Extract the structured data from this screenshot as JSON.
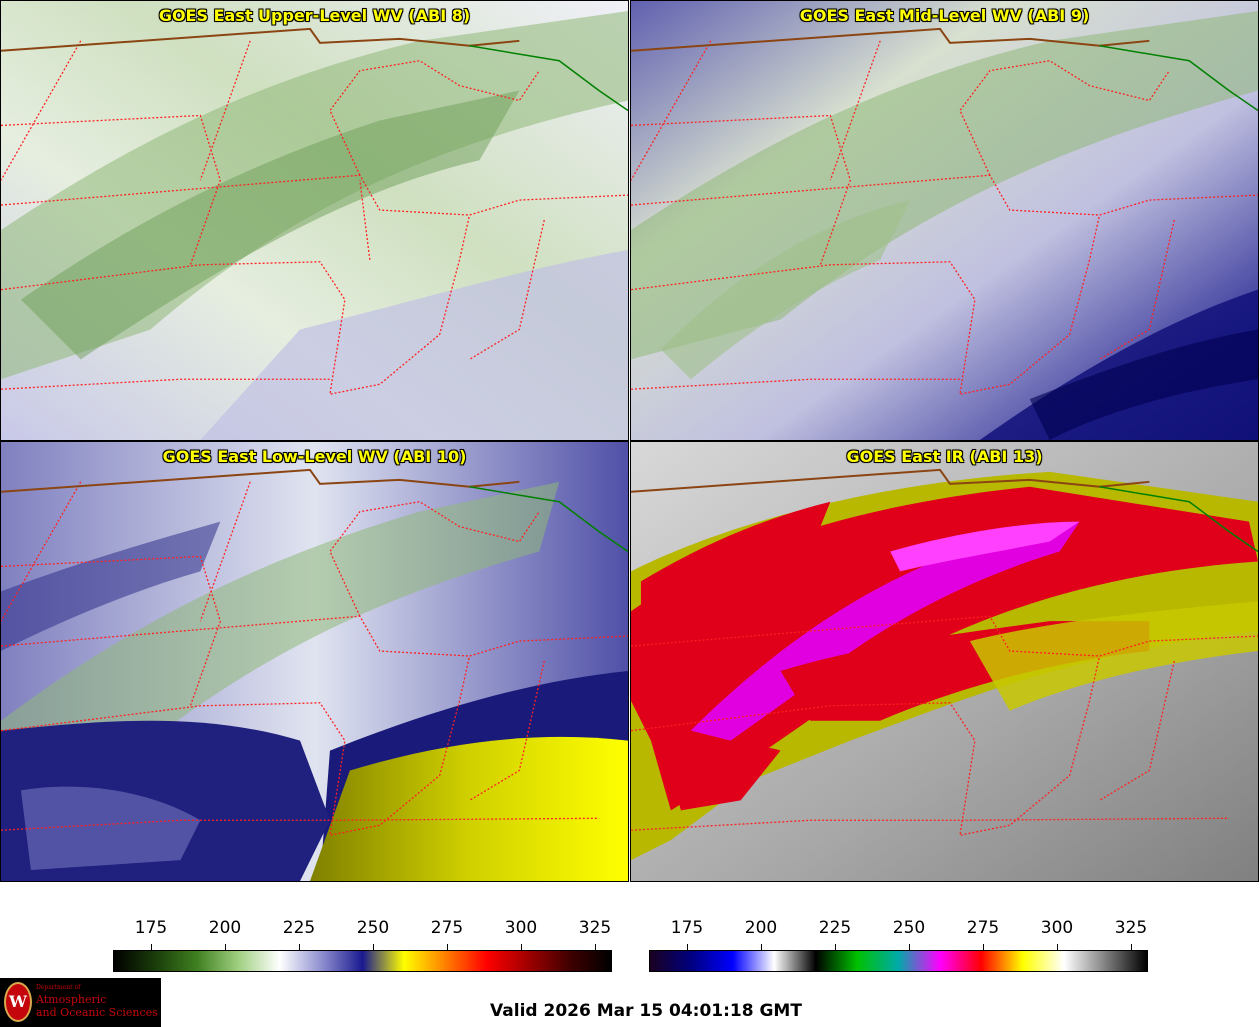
{
  "panels": [
    {
      "title": "GOES East Upper-Level WV (ABI 8)",
      "scheme": "wv_upper"
    },
    {
      "title": "GOES East Mid-Level WV (ABI 9)",
      "scheme": "wv_mid"
    },
    {
      "title": "GOES East Low-Level WV (ABI 10)",
      "scheme": "wv_low"
    },
    {
      "title": "GOES East IR (ABI 13)",
      "scheme": "ir"
    }
  ],
  "colorbars": [
    {
      "name": "wv-colorbar",
      "ticks": [
        "175",
        "200",
        "225",
        "250",
        "275",
        "300",
        "325"
      ],
      "colors": [
        "#000000",
        "#1a3d0a",
        "#3f7f20",
        "#9fcf80",
        "#ffffff",
        "#9090d0",
        "#1a1a90",
        "#ffff00",
        "#ff8000",
        "#ff0000",
        "#a00000",
        "#400000",
        "#000000"
      ]
    },
    {
      "name": "ir-colorbar",
      "ticks": [
        "175",
        "200",
        "225",
        "250",
        "275",
        "300",
        "325"
      ],
      "colors": [
        "#1a0020",
        "#000080",
        "#0000ff",
        "#ffffff",
        "#000000",
        "#00c000",
        "#00aaaa",
        "#ff00ff",
        "#ff0000",
        "#ffff00",
        "#ffffff",
        "#808080",
        "#000000"
      ]
    }
  ],
  "logo": {
    "dept": "Department of",
    "line1": "Atmospheric",
    "line2": "and Oceanic Sciences",
    "mark": "W"
  },
  "valid_time": "Valid 2026 Mar 15 04:01:18 GMT",
  "colors": {
    "border_state": "#ff0000",
    "border_canada": "#8b4513",
    "border_water": "#008000",
    "title_text": "#ffff00"
  }
}
